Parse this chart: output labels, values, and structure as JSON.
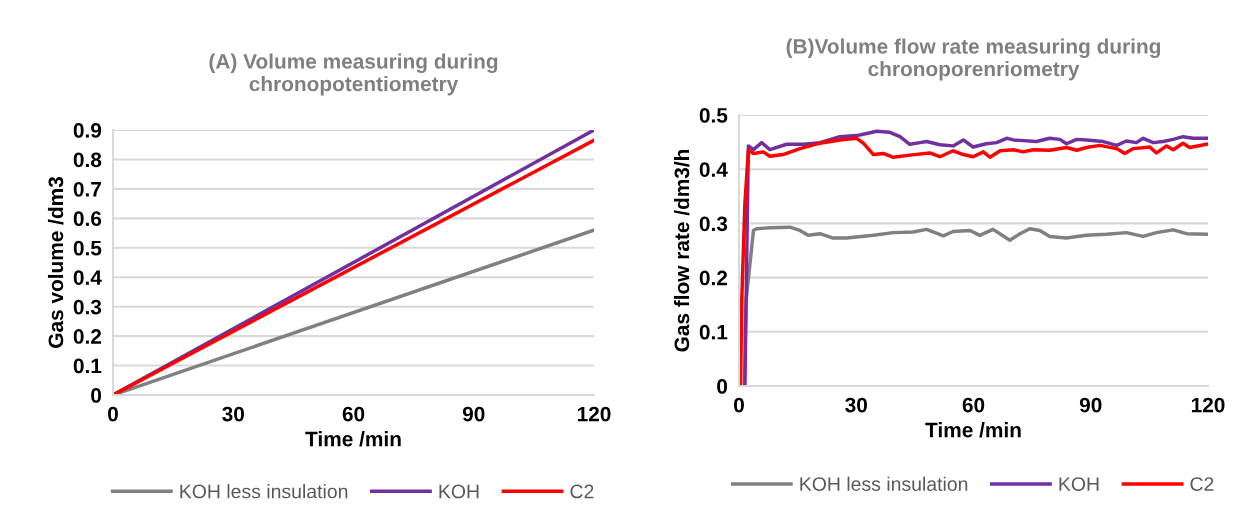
{
  "chart_data": [
    {
      "type": "line",
      "title": "(A) Volume measuring during\nchronopotentiometry",
      "xlabel": "Time /min",
      "ylabel": "Gas volume /dm3",
      "xlim": [
        0,
        120
      ],
      "xticks": [
        0,
        30,
        60,
        90,
        120
      ],
      "ylim": [
        0,
        0.9
      ],
      "yticks": [
        0,
        0.1,
        0.2,
        0.3,
        0.4,
        0.5,
        0.6,
        0.7,
        0.8,
        0.9
      ],
      "grid": "y",
      "legend": "bottom",
      "series": [
        {
          "name": "KOH less insulation",
          "color": "#808080",
          "x": [
            0,
            120
          ],
          "values": [
            0,
            0.56
          ]
        },
        {
          "name": "KOH",
          "color": "#7030a0",
          "x": [
            0,
            120
          ],
          "values": [
            0,
            0.9
          ]
        },
        {
          "name": "C2",
          "color": "#ff0000",
          "x": [
            0,
            120
          ],
          "values": [
            0,
            0.865
          ]
        }
      ]
    },
    {
      "type": "line",
      "title": "(B)Volume flow rate measuring during\nchronoporenriometry",
      "xlabel": "Time /min",
      "ylabel": "Gas flow rate /dm3/h",
      "xlim": [
        0,
        120
      ],
      "xticks": [
        0,
        30,
        60,
        90,
        120
      ],
      "ylim": [
        0,
        0.5
      ],
      "yticks": [
        0,
        0.1,
        0.2,
        0.3,
        0.4,
        0.5
      ],
      "grid": "y",
      "legend": "bottom",
      "series": [
        {
          "name": "KOH less insulation",
          "color": "#808080",
          "x": [
            1.4,
            1.8,
            2.8,
            3.7,
            4.5,
            7.9,
            13.0,
            15.6,
            17.7,
            20.7,
            24.1,
            27.5,
            34.4,
            39.5,
            44.6,
            48.0,
            52.3,
            54.8,
            59.1,
            61.6,
            65.0,
            69.3,
            71.9,
            74.4,
            77.0,
            79.5,
            83.8,
            88.9,
            94.0,
            99.1,
            103.4,
            106.8,
            111.1,
            114.5,
            119.6
          ],
          "values": [
            0,
            0.157,
            0.225,
            0.287,
            0.29,
            0.292,
            0.293,
            0.287,
            0.278,
            0.281,
            0.273,
            0.273,
            0.278,
            0.283,
            0.284,
            0.289,
            0.277,
            0.285,
            0.287,
            0.278,
            0.289,
            0.269,
            0.281,
            0.29,
            0.287,
            0.276,
            0.273,
            0.278,
            0.28,
            0.283,
            0.276,
            0.283,
            0.288,
            0.281,
            0.28
          ]
        },
        {
          "name": "KOH",
          "color": "#7030a0",
          "x": [
            1.5,
            2.4,
            3.7,
            5.8,
            7.9,
            12.2,
            16.5,
            20.7,
            25.8,
            30.1,
            32.7,
            35.2,
            38.6,
            41.2,
            43.7,
            46.3,
            48.0,
            51.4,
            54.8,
            57.4,
            59.9,
            63.3,
            65.9,
            68.5,
            70.2,
            76.1,
            79.5,
            82.1,
            83.8,
            86.4,
            88.9,
            93.2,
            96.6,
            99.1,
            101.7,
            103.4,
            106.0,
            108.5,
            111.1,
            113.6,
            116.2,
            119.6
          ],
          "values": [
            0,
            0.443,
            0.436,
            0.449,
            0.436,
            0.446,
            0.446,
            0.449,
            0.46,
            0.462,
            0.466,
            0.47,
            0.468,
            0.46,
            0.446,
            0.449,
            0.451,
            0.445,
            0.443,
            0.454,
            0.441,
            0.447,
            0.449,
            0.457,
            0.454,
            0.451,
            0.457,
            0.455,
            0.447,
            0.455,
            0.454,
            0.451,
            0.444,
            0.452,
            0.449,
            0.457,
            0.449,
            0.451,
            0.455,
            0.46,
            0.457,
            0.457
          ]
        },
        {
          "name": "C2",
          "color": "#ff0000",
          "x": [
            0.4,
            0.7,
            1.5,
            2.4,
            3.7,
            6.2,
            7.9,
            11.3,
            15.6,
            20.7,
            25.8,
            30.1,
            31.8,
            34.4,
            36.9,
            39.5,
            43.7,
            48.8,
            51.4,
            54.8,
            57.4,
            59.9,
            62.5,
            64.2,
            66.8,
            70.2,
            72.7,
            75.3,
            79.5,
            83.8,
            86.4,
            88.9,
            92.3,
            96.6,
            98.7,
            100.9,
            105.1,
            106.8,
            109.4,
            111.1,
            113.6,
            115.3,
            119.6
          ],
          "values": [
            0,
            0.157,
            0.336,
            0.435,
            0.429,
            0.432,
            0.424,
            0.427,
            0.438,
            0.448,
            0.454,
            0.457,
            0.448,
            0.427,
            0.429,
            0.422,
            0.426,
            0.43,
            0.423,
            0.434,
            0.427,
            0.423,
            0.432,
            0.422,
            0.434,
            0.436,
            0.432,
            0.436,
            0.435,
            0.44,
            0.435,
            0.44,
            0.444,
            0.438,
            0.429,
            0.438,
            0.441,
            0.43,
            0.443,
            0.436,
            0.448,
            0.44,
            0.446
          ]
        }
      ]
    }
  ]
}
